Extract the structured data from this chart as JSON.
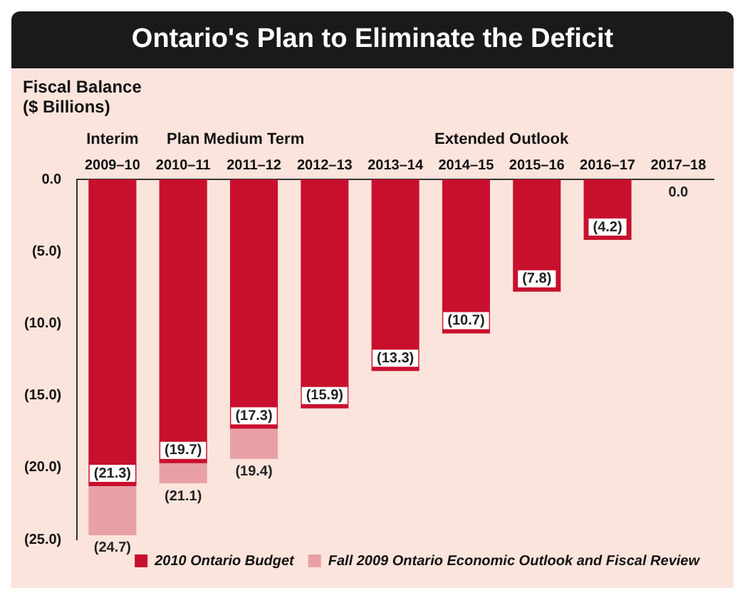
{
  "chart_data": {
    "type": "bar",
    "title": "Ontario's Plan to Eliminate the Deficit",
    "ylabel": "Fiscal Balance ($ Billions)",
    "categories": [
      "2009–10",
      "2010–11",
      "2011–12",
      "2012–13",
      "2013–14",
      "2014–15",
      "2015–16",
      "2016–17",
      "2017–18"
    ],
    "series": [
      {
        "name": "2010 Ontario Budget",
        "color": "#c8102e",
        "values": [
          -21.3,
          -19.7,
          -17.3,
          -15.9,
          -13.3,
          -10.7,
          -7.8,
          -4.2,
          0.0
        ],
        "value_labels": [
          "(21.3)",
          "(19.7)",
          "(17.3)",
          "(15.9)",
          "(13.3)",
          "(10.7)",
          "(7.8)",
          "(4.2)",
          "0.0"
        ]
      },
      {
        "name": "Fall 2009 Ontario Economic Outlook and Fiscal Review",
        "color": "#e8a0a6",
        "values": [
          -24.7,
          -21.1,
          -19.4,
          null,
          null,
          null,
          null,
          null,
          null
        ],
        "value_labels": [
          "(24.7)",
          "(21.1)",
          "(19.4)",
          null,
          null,
          null,
          null,
          null,
          null
        ]
      }
    ],
    "annotations": [
      "Interim",
      "Plan",
      "Medium Term",
      "Extended Outlook"
    ],
    "ylim": [
      -25,
      0
    ],
    "yticks": [
      {
        "value": 0,
        "label": "0.0"
      },
      {
        "value": -5,
        "label": "(5.0)"
      },
      {
        "value": -10,
        "label": "(10.0)"
      },
      {
        "value": -15,
        "label": "(15.0)"
      },
      {
        "value": -20,
        "label": "(20.0)"
      },
      {
        "value": -25,
        "label": "(25.0)"
      }
    ],
    "grid": false,
    "legend": "bottom right"
  }
}
